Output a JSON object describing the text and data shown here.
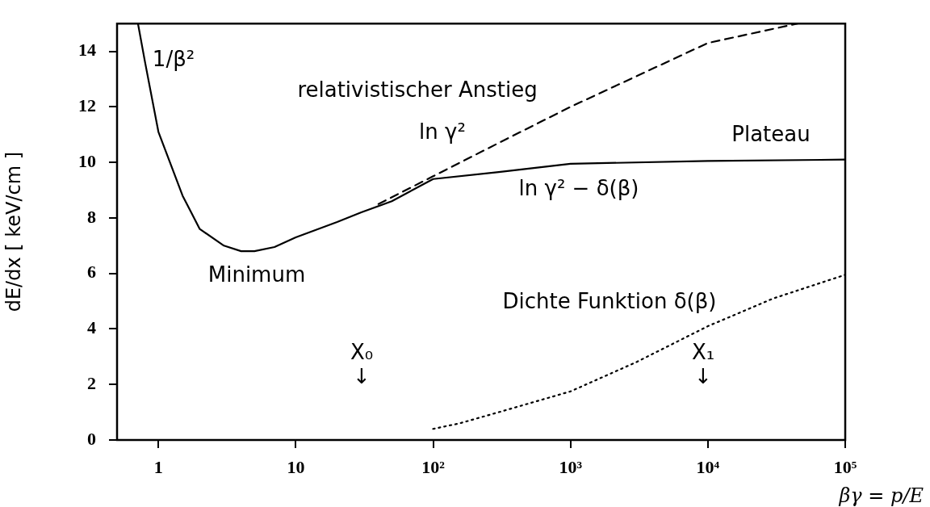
{
  "chart_data": {
    "type": "line",
    "xlabel": "βγ = p/E",
    "ylabel": "dE/dx [ keV/cm ]",
    "log": "x",
    "xlim": [
      0.5,
      100000
    ],
    "ylim": [
      0,
      15
    ],
    "xticks": [
      {
        "value": 1,
        "label": "1"
      },
      {
        "value": 10,
        "label": "10"
      },
      {
        "value": 100,
        "label": "10²"
      },
      {
        "value": 1000,
        "label": "10³"
      },
      {
        "value": 10000,
        "label": "10⁴"
      },
      {
        "value": 100000,
        "label": "10⁵"
      }
    ],
    "yticks": [
      0,
      2,
      4,
      6,
      8,
      10,
      12,
      14
    ],
    "grid": false,
    "legend": false,
    "marker": "none",
    "series": [
      {
        "color": "#000000",
        "line_style": "solid",
        "x": [
          0.71,
          0.8,
          1,
          1.5,
          2,
          3,
          4,
          5,
          7,
          10,
          20,
          30,
          50,
          100,
          300,
          1000,
          10000,
          100000
        ],
        "values": [
          15,
          13.6,
          11.1,
          8.8,
          7.6,
          7,
          6.8,
          6.8,
          6.95,
          7.3,
          7.85,
          8.2,
          8.6,
          9.4,
          9.65,
          9.95,
          10.05,
          10.1
        ]
      },
      {
        "color": "#000000",
        "line_style": "dashed",
        "x": [
          40,
          100,
          300,
          1000,
          10000,
          45000
        ],
        "values": [
          8.5,
          9.5,
          10.7,
          12,
          14.3,
          15
        ]
      },
      {
        "color": "#000000",
        "line_style": "dotted",
        "x": [
          100,
          156,
          300,
          1000,
          3000,
          10000,
          30000,
          100000
        ],
        "values": [
          0.4,
          0.6,
          1,
          1.75,
          2.8,
          4.1,
          5.1,
          5.95
        ]
      }
    ],
    "annotations": [
      "1/β²",
      "relativistischer Anstieg",
      "ln γ²",
      "Plateau",
      "ln γ² − δ(β)",
      "Minimum",
      "Dichte Funktion δ(β)",
      "X₀\n↓",
      "X₁\n↓"
    ]
  }
}
